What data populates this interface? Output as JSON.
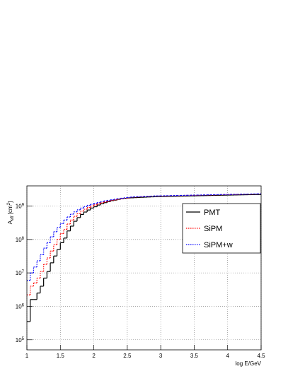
{
  "chart_data": {
    "type": "histogram",
    "xlabel": "log E/GeV",
    "ylabel": [
      "A",
      "eff",
      " [cm",
      "2",
      "]"
    ],
    "log_y": true,
    "grid": true,
    "legend": "upper right",
    "xlim": [
      1,
      4.5
    ],
    "xticks": [
      1,
      1.5,
      2,
      2.5,
      3,
      3.5,
      4,
      4.5
    ],
    "ylim": [
      50000,
      4000000000
    ],
    "yticks": [
      {
        "value": 100000,
        "label": "10",
        "exponent": "5"
      },
      {
        "value": 1000000,
        "label": "10",
        "exponent": "6"
      },
      {
        "value": 10000000,
        "label": "10",
        "exponent": "7"
      },
      {
        "value": 100000000,
        "label": "10",
        "exponent": "8"
      },
      {
        "value": 1000000000,
        "label": "10",
        "exponent": "9"
      }
    ],
    "bins": [
      1,
      1.05,
      1.1,
      1.15,
      1.2,
      1.25,
      1.3,
      1.35,
      1.4,
      1.45,
      1.5,
      1.55,
      1.6,
      1.65,
      1.7,
      1.75,
      1.8,
      1.85,
      1.9,
      1.95,
      2,
      2.05,
      2.1,
      2.15,
      2.2,
      2.25,
      2.3,
      2.35,
      2.4,
      2.45,
      2.5,
      2.55,
      2.6,
      2.65,
      2.7,
      2.75,
      2.8,
      2.85,
      2.9,
      2.95,
      3,
      3.05,
      3.1,
      3.15,
      3.2,
      3.25,
      3.3,
      3.35,
      3.4,
      3.45,
      3.5,
      3.55,
      3.6,
      3.65,
      3.7,
      3.75,
      3.8,
      3.85,
      3.9,
      3.95,
      4,
      4.05,
      4.1,
      4.15,
      4.2,
      4.25,
      4.3,
      4.35,
      4.4,
      4.45,
      4.5
    ],
    "series": [
      {
        "name": "PMT",
        "color": "#000000",
        "dash": "none",
        "values": [
          350000.0,
          1600000.0,
          1600000.0,
          2500000.0,
          4000000.0,
          7000000.0,
          11000000.0,
          20000000.0,
          32000000.0,
          50000000.0,
          80000000.0,
          110000000.0,
          180000000.0,
          250000000.0,
          350000000.0,
          450000000.0,
          560000000.0,
          660000000.0,
          760000000.0,
          870000000.0,
          950000000.0,
          1070000000.0,
          1170000000.0,
          1260000000.0,
          1350000000.0,
          1450000000.0,
          1500000000.0,
          1580000000.0,
          1660000000.0,
          1700000000.0,
          1740000000.0,
          1760000000.0,
          1780000000.0,
          1800000000.0,
          1820000000.0,
          1840000000.0,
          1860000000.0,
          1880000000.0,
          1900000000.0,
          1910000000.0,
          1920000000.0,
          1930000000.0,
          1940000000.0,
          1950000000.0,
          1960000000.0,
          1970000000.0,
          1980000000.0,
          1990000000.0,
          2000000000.0,
          2010000000.0,
          2020000000.0,
          2030000000.0,
          2040000000.0,
          2050000000.0,
          2060000000.0,
          2070000000.0,
          2080000000.0,
          2090000000.0,
          2100000000.0,
          2110000000.0,
          2120000000.0,
          2130000000.0,
          2140000000.0,
          2150000000.0,
          2160000000.0,
          2170000000.0,
          2180000000.0,
          2190000000.0,
          2200000000.0,
          2200000000.0
        ]
      },
      {
        "name": "SiPM",
        "color": "#ff0000",
        "dash": "1.5 1.5",
        "values": [
          2200000.0,
          4000000.0,
          5000000.0,
          7000000.0,
          11000000.0,
          18000000.0,
          28000000.0,
          45000000.0,
          70000000.0,
          100000000.0,
          150000000.0,
          200000000.0,
          290000000.0,
          380000000.0,
          490000000.0,
          590000000.0,
          700000000.0,
          800000000.0,
          900000000.0,
          1000000000.0,
          1080000000.0,
          1170000000.0,
          1250000000.0,
          1330000000.0,
          1400000000.0,
          1480000000.0,
          1530000000.0,
          1600000000.0,
          1670000000.0,
          1720000000.0,
          1770000000.0,
          1840000000.0,
          1860000000.0,
          1880000000.0,
          1900000000.0,
          1920000000.0,
          1940000000.0,
          1960000000.0,
          1980000000.0,
          1990000000.0,
          2000000000.0,
          2010000000.0,
          2020000000.0,
          2030000000.0,
          2040000000.0,
          2050000000.0,
          2060000000.0,
          2070000000.0,
          2080000000.0,
          2090000000.0,
          2100000000.0,
          2110000000.0,
          2120000000.0,
          2130000000.0,
          2140000000.0,
          2150000000.0,
          2160000000.0,
          2170000000.0,
          2180000000.0,
          2190000000.0,
          2200000000.0,
          2210000000.0,
          2220000000.0,
          2230000000.0,
          2240000000.0,
          2250000000.0,
          2260000000.0,
          2270000000.0,
          2280000000.0,
          2290000000.0
        ]
      },
      {
        "name": "SiPM+w",
        "color": "#0000ff",
        "dash": "1.5 1.5",
        "values": [
          6000000.0,
          10000000.0,
          15000000.0,
          23000000.0,
          35000000.0,
          55000000.0,
          80000000.0,
          120000000.0,
          170000000.0,
          230000000.0,
          300000000.0,
          380000000.0,
          470000000.0,
          570000000.0,
          670000000.0,
          770000000.0,
          870000000.0,
          960000000.0,
          1050000000.0,
          1130000000.0,
          1200000000.0,
          1280000000.0,
          1350000000.0,
          1420000000.0,
          1480000000.0,
          1540000000.0,
          1600000000.0,
          1660000000.0,
          1710000000.0,
          1760000000.0,
          1800000000.0,
          1860000000.0,
          1880000000.0,
          1900000000.0,
          1920000000.0,
          1940000000.0,
          1960000000.0,
          1980000000.0,
          2000000000.0,
          2010000000.0,
          2020000000.0,
          2030000000.0,
          2040000000.0,
          2050000000.0,
          2060000000.0,
          2070000000.0,
          2080000000.0,
          2090000000.0,
          2100000000.0,
          2110000000.0,
          2120000000.0,
          2130000000.0,
          2140000000.0,
          2150000000.0,
          2160000000.0,
          2170000000.0,
          2180000000.0,
          2190000000.0,
          2200000000.0,
          2210000000.0,
          2220000000.0,
          2230000000.0,
          2240000000.0,
          2250000000.0,
          2260000000.0,
          2270000000.0,
          2280000000.0,
          2290000000.0,
          2300000000.0,
          2310000000.0
        ]
      }
    ]
  }
}
